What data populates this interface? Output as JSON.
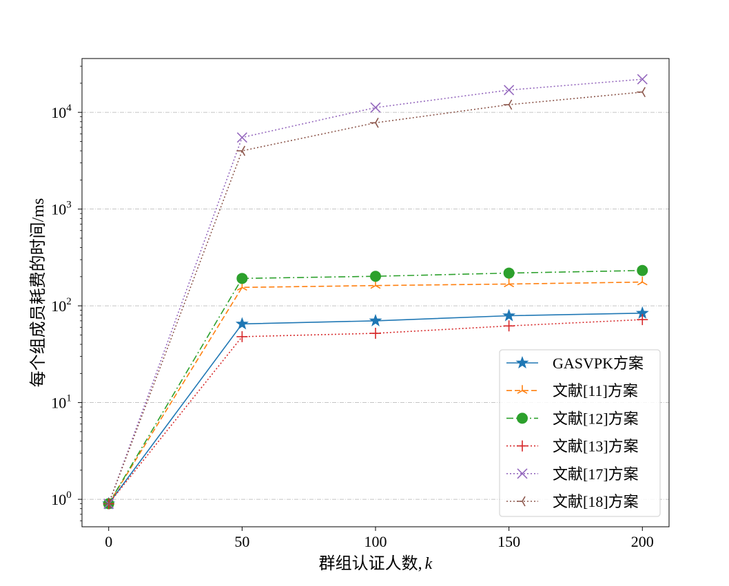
{
  "chart_data": {
    "type": "line",
    "title": "",
    "xlabel_prefix": "群组认证人数,",
    "xlabel_var": "k",
    "ylabel": "每个组成员耗费的时间/ms",
    "x": [
      0,
      50,
      100,
      150,
      200
    ],
    "xlim": [
      -10,
      210
    ],
    "ylim": [
      0.52,
      36000
    ],
    "yscale": "log",
    "xticks": [
      0,
      50,
      100,
      150,
      200
    ],
    "xtick_labels": [
      "0",
      "50",
      "100",
      "150",
      "200"
    ],
    "yticks": [
      1,
      10,
      100,
      1000,
      10000
    ],
    "ytick_base": "10",
    "ytick_exponents": [
      "0",
      "1",
      "2",
      "3",
      "4"
    ],
    "grid": "y-major dash-dot",
    "legend_position": "lower-right",
    "series": [
      {
        "name": "GASVPK方案",
        "values": [
          0.9,
          65,
          70,
          79,
          84
        ],
        "color": "#1f77b4",
        "dash": "",
        "marker": "star"
      },
      {
        "name": "文献[11]方案",
        "values": [
          0.9,
          155,
          162,
          168,
          176
        ],
        "color": "#ff7f0e",
        "dash": "8,4",
        "marker": "tri_up"
      },
      {
        "name": "文献[12]方案",
        "values": [
          0.9,
          192,
          202,
          218,
          232
        ],
        "color": "#2ca02c",
        "dash": "10,4,2,4",
        "marker": "circle"
      },
      {
        "name": "文献[13]方案",
        "values": [
          0.9,
          48,
          52,
          62,
          72
        ],
        "color": "#d62728",
        "dash": "2,3",
        "marker": "plus"
      },
      {
        "name": "文献[17]方案",
        "values": [
          0.9,
          5500,
          11200,
          17000,
          22000
        ],
        "color": "#9467bd",
        "dash": "2,3",
        "marker": "x"
      },
      {
        "name": "文献[18]方案",
        "values": [
          0.9,
          4000,
          7800,
          12000,
          16200
        ],
        "color": "#8c564b",
        "dash": "2,3",
        "marker": "tri_left"
      }
    ]
  }
}
